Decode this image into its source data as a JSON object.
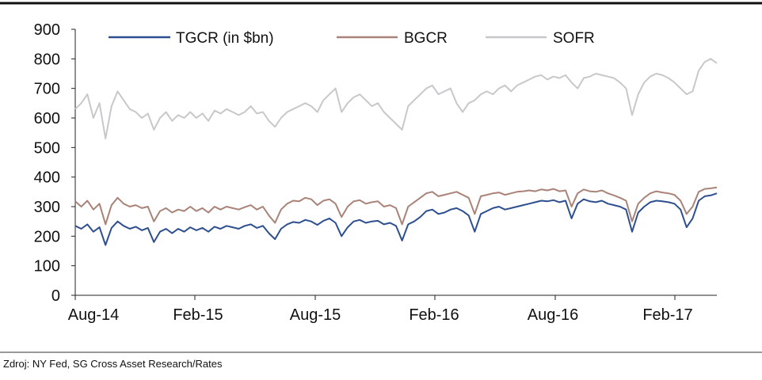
{
  "source_note": "Zdroj: NY Fed, SG Cross Asset Research/Rates",
  "chart_data": {
    "type": "line",
    "x_tick_labels": [
      "Aug-14",
      "Feb-15",
      "Aug-15",
      "Feb-16",
      "Aug-16",
      "Feb-17"
    ],
    "ylim": [
      0,
      900
    ],
    "y_ticks": [
      0,
      100,
      200,
      300,
      400,
      500,
      600,
      700,
      800,
      900
    ],
    "grid": false,
    "legend_position": "top",
    "series": [
      {
        "name": "TGCR (in $bn)",
        "color": "#2e4f8f",
        "approx_values": [
          235,
          225,
          240,
          215,
          230,
          170,
          228,
          250,
          235,
          225,
          232,
          220,
          228,
          180,
          215,
          225,
          210,
          225,
          215,
          230,
          220,
          228,
          215,
          232,
          225,
          235,
          230,
          225,
          235,
          240,
          228,
          235,
          210,
          190,
          225,
          240,
          248,
          245,
          255,
          250,
          238,
          252,
          260,
          245,
          200,
          230,
          250,
          255,
          245,
          250,
          252,
          240,
          245,
          235,
          185,
          240,
          250,
          265,
          285,
          290,
          275,
          280,
          290,
          295,
          285,
          270,
          215,
          275,
          285,
          295,
          300,
          290,
          295,
          300,
          305,
          310,
          315,
          320,
          318,
          322,
          315,
          320,
          260,
          310,
          325,
          318,
          315,
          320,
          310,
          305,
          300,
          290,
          215,
          280,
          300,
          315,
          320,
          318,
          315,
          310,
          290,
          230,
          260,
          320,
          335,
          338,
          345
        ]
      },
      {
        "name": "BGCR",
        "color": "#a98378",
        "approx_values": [
          318,
          300,
          320,
          290,
          310,
          240,
          305,
          330,
          310,
          300,
          305,
          295,
          300,
          250,
          285,
          295,
          280,
          290,
          285,
          300,
          285,
          295,
          280,
          300,
          290,
          300,
          295,
          290,
          298,
          305,
          290,
          300,
          270,
          245,
          290,
          310,
          320,
          318,
          330,
          325,
          305,
          320,
          325,
          310,
          265,
          300,
          318,
          322,
          310,
          315,
          318,
          300,
          305,
          295,
          240,
          300,
          315,
          330,
          345,
          350,
          335,
          340,
          345,
          350,
          340,
          330,
          275,
          335,
          340,
          345,
          348,
          340,
          345,
          350,
          352,
          355,
          352,
          358,
          355,
          360,
          352,
          355,
          300,
          345,
          358,
          352,
          350,
          355,
          345,
          338,
          330,
          320,
          250,
          310,
          330,
          345,
          352,
          348,
          345,
          340,
          320,
          275,
          300,
          350,
          360,
          362,
          365
        ]
      },
      {
        "name": "SOFR",
        "color": "#c8c8cc",
        "approx_values": [
          630,
          650,
          680,
          600,
          650,
          530,
          640,
          690,
          660,
          630,
          620,
          600,
          615,
          560,
          600,
          620,
          590,
          610,
          600,
          620,
          600,
          615,
          590,
          625,
          615,
          630,
          620,
          610,
          620,
          640,
          615,
          620,
          590,
          570,
          600,
          620,
          630,
          640,
          650,
          640,
          620,
          660,
          680,
          700,
          620,
          650,
          670,
          680,
          660,
          640,
          650,
          620,
          600,
          580,
          560,
          640,
          660,
          680,
          700,
          710,
          680,
          690,
          700,
          650,
          620,
          650,
          660,
          680,
          690,
          680,
          700,
          710,
          690,
          710,
          720,
          730,
          740,
          745,
          730,
          740,
          735,
          745,
          720,
          700,
          735,
          740,
          750,
          745,
          740,
          735,
          720,
          700,
          610,
          680,
          720,
          740,
          750,
          745,
          735,
          720,
          700,
          680,
          690,
          760,
          790,
          800,
          785
        ]
      }
    ]
  }
}
